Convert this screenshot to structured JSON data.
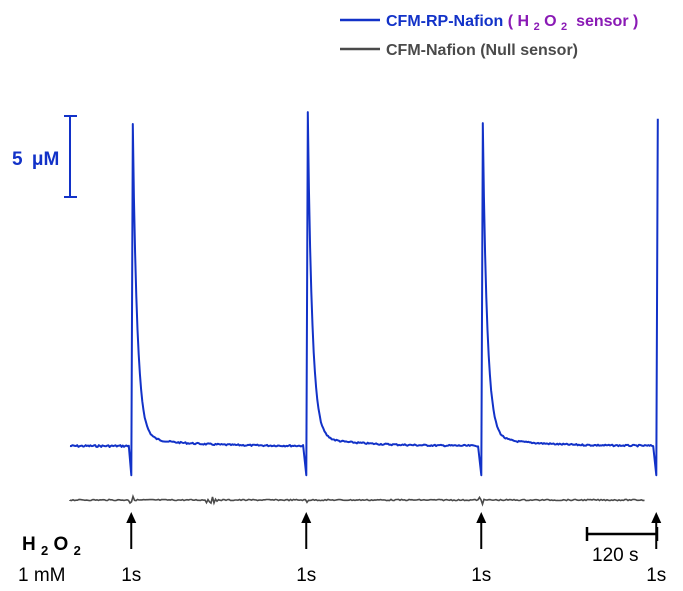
{
  "colors": {
    "h2o2_sensor_trace": "#1232c8",
    "null_sensor_trace": "#4a4a4a",
    "h2o2_sensor_text": "#8a1ab5",
    "axis_black": "#000000",
    "scale_blue": "#1232c8"
  },
  "legend": {
    "h2o2_sensor": {
      "name": "CFM-RP-Nafion",
      "open": "(",
      "species": "H",
      "sub1": "2",
      "species2": "O",
      "sub2": "2",
      "sensor_word": " sensor",
      "close": ")"
    },
    "null_sensor": {
      "label": "CFM-Nafion (Null sensor)"
    }
  },
  "scale_bars": {
    "current": {
      "value_text": "5",
      "unit_prefix": "μ",
      "unit": "M"
    },
    "time": {
      "label": "120 s"
    }
  },
  "injection": {
    "species": "H",
    "sub1": "2",
    "species2": "O",
    "sub2": "2",
    "concentration": "1 mM",
    "duration_label": "1s"
  },
  "chart_data": {
    "type": "line",
    "series": [
      {
        "name": "CFM-RP-Nafion (H2O2 sensor)",
        "unit": "μM",
        "baseline": 0,
        "peaks": [
          {
            "time_s": 0,
            "peak_uM": 19.3
          },
          {
            "time_s": 300,
            "peak_uM": 20.0
          },
          {
            "time_s": 600,
            "peak_uM": 19.3
          },
          {
            "time_s": 900,
            "peak_uM": 20.2
          }
        ],
        "transient_dip_uM": -1.8
      },
      {
        "name": "CFM-Nafion (Null sensor)",
        "unit": "μM",
        "baseline": 0
      }
    ],
    "injections": [
      {
        "time_s": 0,
        "label": "1s"
      },
      {
        "time_s": 300,
        "label": "1s"
      },
      {
        "time_s": 600,
        "label": "1s"
      },
      {
        "time_s": 900,
        "label": "1s"
      }
    ],
    "xlim": [
      -105,
      1095
    ],
    "scale_bar_current_uM": 5,
    "scale_bar_time_s": 120,
    "grid": false,
    "legend_position": "top-right"
  }
}
